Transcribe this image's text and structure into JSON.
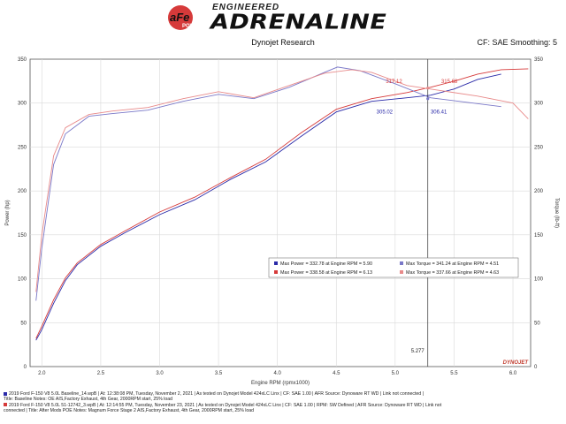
{
  "header": {
    "brand_small": "ENGINEERED",
    "brand_main": "ADRENALINE",
    "badge_text": "aFe",
    "badge_sub": "POWER",
    "dyno_title": "Dynojet Research",
    "cf_label": "CF: SAE Smoothing: 5"
  },
  "chart_data": {
    "type": "line",
    "xlabel": "Engine RPM (rpmx1000)",
    "ylabel_left": "Power (hp)",
    "ylabel_right": "Torque (lb-ft)",
    "xlim": [
      1.9,
      6.15
    ],
    "ylim": [
      0,
      350
    ],
    "x_ticks": [
      2.0,
      2.5,
      3.0,
      3.5,
      4.0,
      4.5,
      5.0,
      5.5,
      6.0
    ],
    "y_ticks": [
      0,
      50,
      100,
      150,
      200,
      250,
      300,
      350
    ],
    "cursor_x": 5.277,
    "cursor_label": "5.277",
    "colors": {
      "baseline_power": "#2a2aa8",
      "after_power": "#d63a3a",
      "baseline_torque": "#7a78c8",
      "after_torque": "#e88a8a",
      "axis": "#555555",
      "grid": "#d9d9d9",
      "cursor": "#333333",
      "dynojet_logo": "#c0392b"
    },
    "series": [
      {
        "kind": "power",
        "run": "baseline",
        "x": [
          1.95,
          2.0,
          2.1,
          2.2,
          2.3,
          2.5,
          2.7,
          3.0,
          3.3,
          3.6,
          3.9,
          4.2,
          4.5,
          4.8,
          5.1,
          5.3,
          5.5,
          5.7,
          5.9
        ],
        "y": [
          30,
          42,
          72,
          98,
          116,
          137,
          152,
          173,
          190,
          213,
          233,
          262,
          290,
          302,
          306,
          309,
          316,
          327,
          333
        ]
      },
      {
        "kind": "power",
        "run": "after",
        "x": [
          1.95,
          2.0,
          2.1,
          2.2,
          2.3,
          2.5,
          2.7,
          3.0,
          3.3,
          3.6,
          3.9,
          4.2,
          4.5,
          4.8,
          5.1,
          5.3,
          5.5,
          5.7,
          5.9,
          6.13
        ],
        "y": [
          32,
          46,
          76,
          101,
          118,
          139,
          154,
          176,
          193,
          215,
          236,
          266,
          293,
          305,
          312,
          318,
          325,
          333,
          338,
          339
        ]
      },
      {
        "kind": "torque",
        "run": "baseline",
        "x": [
          1.95,
          2.0,
          2.1,
          2.2,
          2.4,
          2.6,
          2.9,
          3.2,
          3.5,
          3.8,
          4.1,
          4.4,
          4.51,
          4.7,
          5.0,
          5.3,
          5.6,
          5.9
        ],
        "y": [
          75,
          135,
          230,
          265,
          285,
          288,
          292,
          302,
          310,
          305,
          318,
          335,
          341,
          337,
          322,
          306,
          301,
          296
        ]
      },
      {
        "kind": "torque",
        "run": "after",
        "x": [
          1.95,
          2.0,
          2.1,
          2.2,
          2.4,
          2.6,
          2.9,
          3.2,
          3.5,
          3.8,
          4.1,
          4.4,
          4.63,
          4.8,
          5.1,
          5.4,
          5.7,
          6.0,
          6.13
        ],
        "y": [
          85,
          150,
          240,
          272,
          287,
          291,
          295,
          305,
          313,
          306,
          320,
          334,
          338,
          335,
          320,
          314,
          308,
          300,
          282
        ]
      }
    ],
    "annotations": [
      {
        "text": "317.12",
        "x": 4.99,
        "y": 323,
        "color": "#d63a3a"
      },
      {
        "text": "315.68",
        "x": 5.46,
        "y": 323,
        "color": "#d63a3a"
      },
      {
        "text": "305.02",
        "x": 4.91,
        "y": 288,
        "color": "#2a2aa8"
      },
      {
        "text": "306.41",
        "x": 5.37,
        "y": 288,
        "color": "#2a2aa8"
      }
    ],
    "legend": {
      "position": "center-right",
      "entries": [
        {
          "text": "Max Power = 332.78 at Engine RPM = 5.90",
          "color": "#2a2aa8"
        },
        {
          "text": "Max Torque = 341.24 at Engine RPM = 4.51",
          "color": "#7a78c8"
        },
        {
          "text": "Max Power = 338.58 at Engine RPM = 6.13",
          "color": "#d63a3a"
        },
        {
          "text": "Max Torque = 337.66 at Engine RPM = 4.63",
          "color": "#e88a8a"
        }
      ]
    },
    "dynojet_mark": "DYNOJET"
  },
  "footer": {
    "run1_line1": "2019 Ford F-150 V8 5.0L Baseline_14.wpB | At: 12:38:08 PM, Tuesday, November 2, 2021 | As tested on Dynojet Model 424xLC Linx | CF: SAE 1.00 | AFR Source: Dynoware RT WD | Link not connected |",
    "run1_line2": "Title: Baseline  Notes: OE AIS,Factory Exhaust, 4th Gear, 2000RPM start, 25% load",
    "run2_line1": "2019 Ford F-150 V8 5.0L 51-12742_3.wpB | At: 12:14:55 PM, Tuesday, November 23, 2021 | As tested on Dynojet Model 424xLC Linx | CF: SAE 1.00 | RPM: SW Defined | AFR Source: Dynoware RT WD | Link not",
    "run2_line2": "connected |  Title: After Mods POE  Notes: Magnum Force Stage 2  AIS,Factory Exhaust, 4th Gear, 2000RPM start, 25% load"
  }
}
